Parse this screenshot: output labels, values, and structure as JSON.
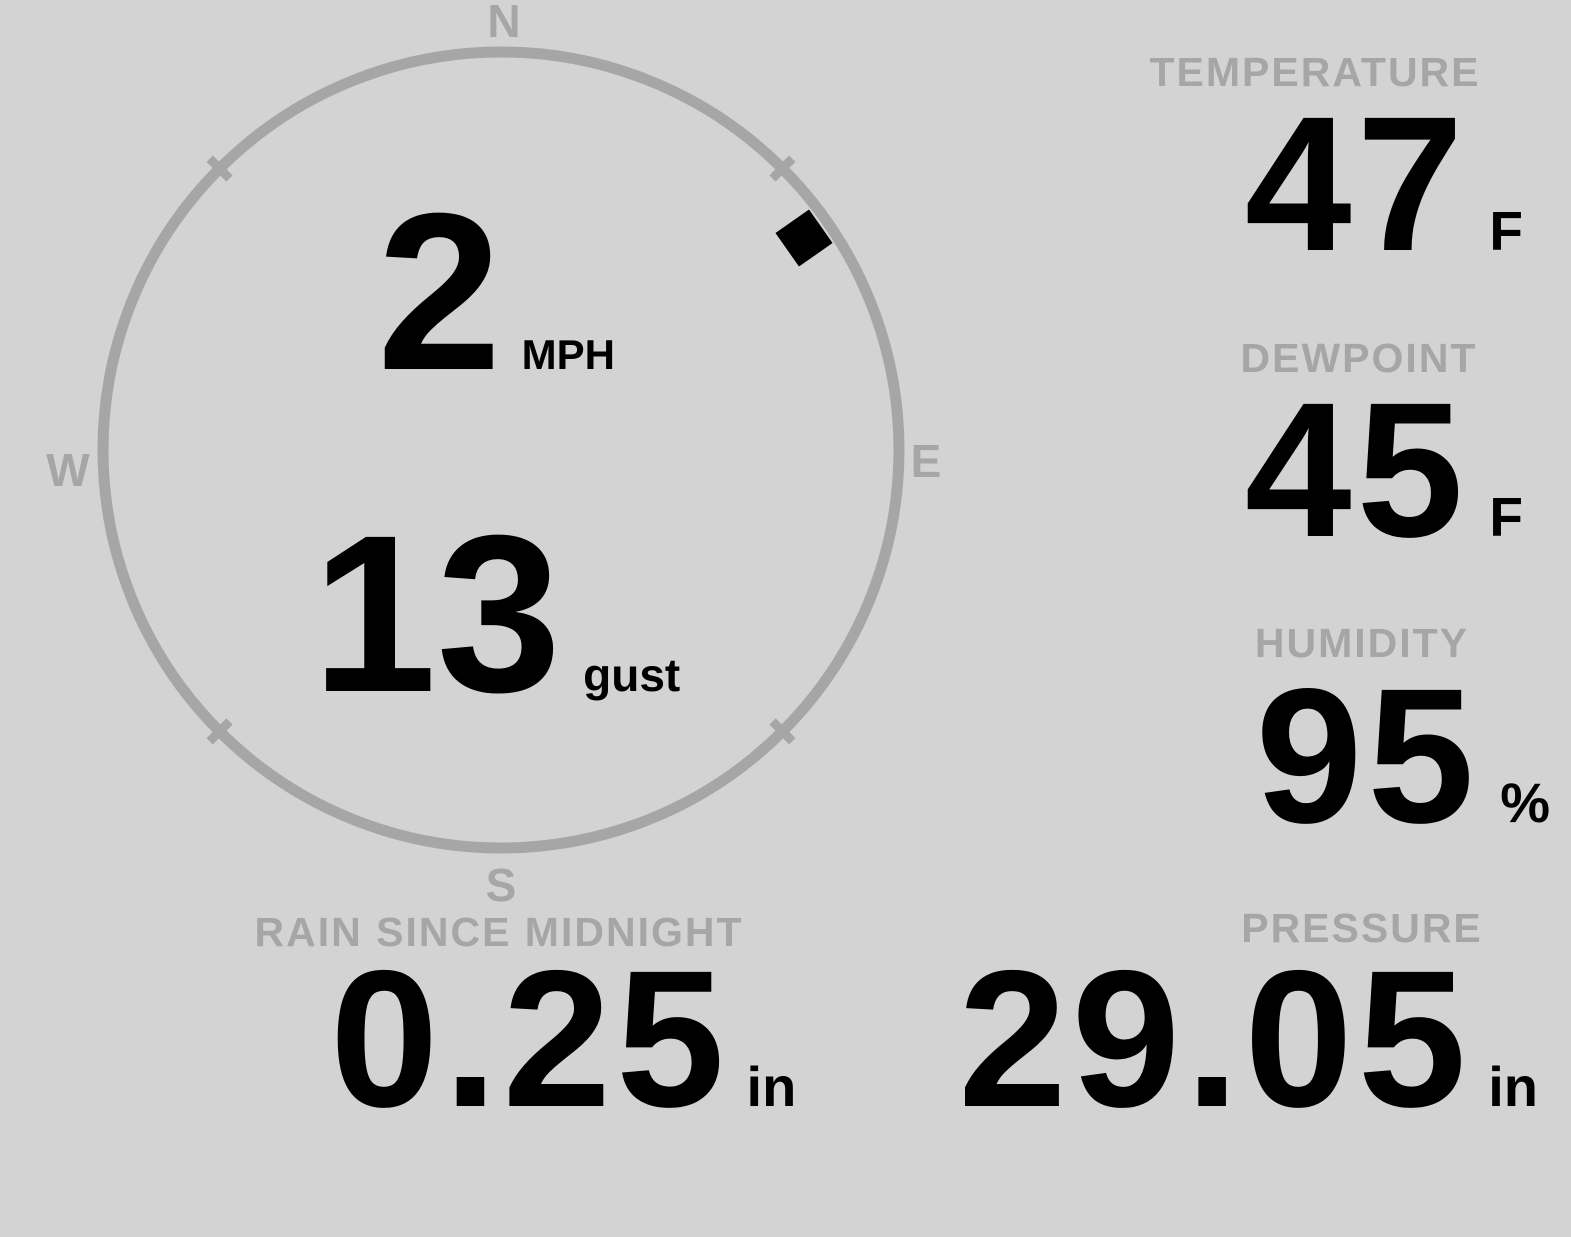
{
  "display": {
    "colors": {
      "background": "#d3d3d3",
      "muted": "#a6a6a6",
      "ink": "#000000"
    },
    "wind": {
      "speed_value": "2",
      "speed_unit": "MPH",
      "gust_value": "13",
      "gust_unit": "gust",
      "direction_degrees": 55,
      "compass": {
        "north": "N",
        "east": "E",
        "south": "S",
        "west": "W"
      }
    },
    "metrics": {
      "temperature": {
        "label": "TEMPERATURE",
        "value": "47",
        "unit": "F"
      },
      "dewpoint": {
        "label": "DEWPOINT",
        "value": "45",
        "unit": "F"
      },
      "humidity": {
        "label": "HUMIDITY",
        "value": "95",
        "unit": "%"
      },
      "rain_since_midnight": {
        "label": "RAIN SINCE MIDNIGHT",
        "value": "0.25",
        "unit": "in"
      },
      "pressure": {
        "label": "PRESSURE",
        "value": "29.05",
        "unit": "in"
      }
    }
  }
}
